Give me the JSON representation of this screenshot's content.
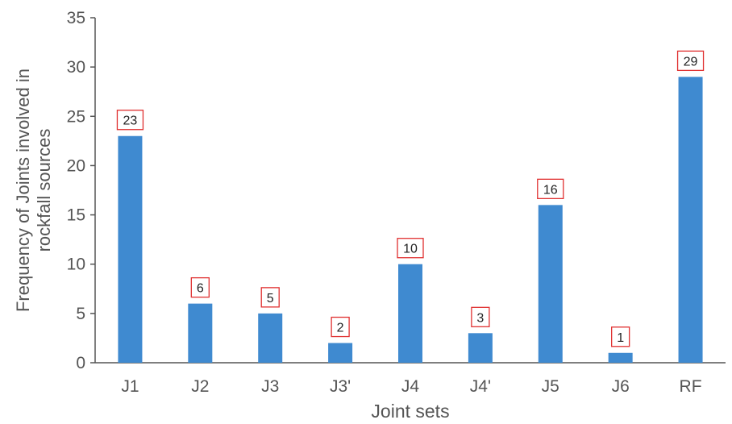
{
  "chart_data": {
    "type": "bar",
    "title": "",
    "xlabel": "Joint sets",
    "ylabel": [
      "Frequency of Joints involved in",
      "rockfall sources"
    ],
    "categories": [
      "J1",
      "J2",
      "J3",
      "J3'",
      "J4",
      "J4'",
      "J5",
      "J6",
      "RF"
    ],
    "values": [
      23,
      6,
      5,
      2,
      10,
      3,
      16,
      1,
      29
    ],
    "ylim": [
      0,
      35
    ],
    "yticks": [
      0,
      5,
      10,
      15,
      20,
      25,
      30,
      35
    ],
    "grid": false,
    "legend": "none",
    "bar_color": "#3f8ad0",
    "label_box_color": "#e03030",
    "axis_color": "#555555",
    "text_color": "#555555"
  }
}
